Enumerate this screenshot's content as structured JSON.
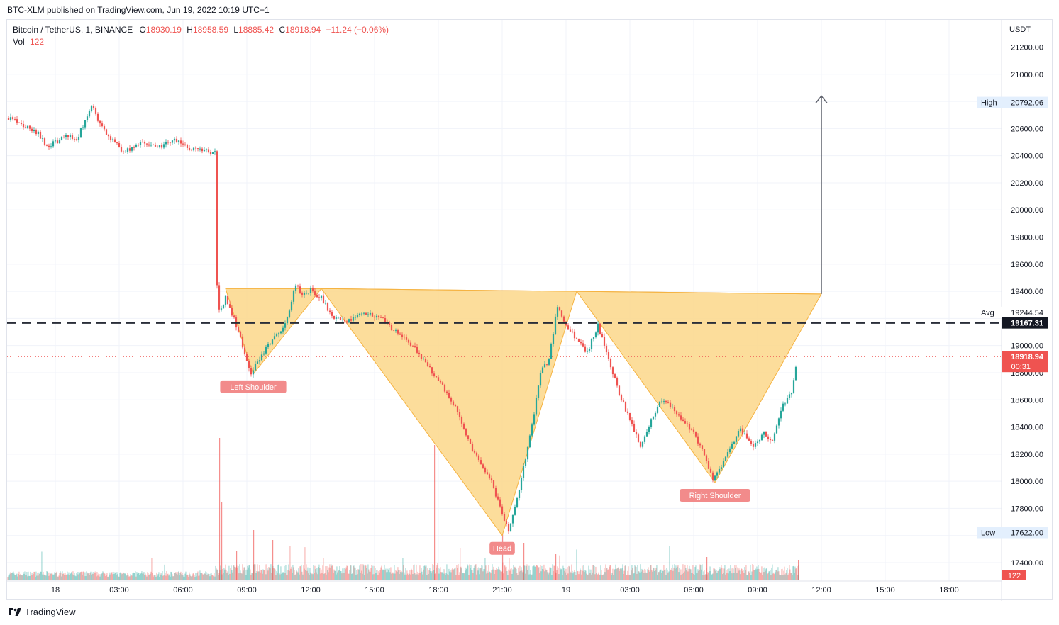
{
  "publisher_line": "BTC-XLM published on TradingView.com, Jun 19, 2022 10:19 UTC+1",
  "legend": {
    "symbol": "Bitcoin / TetherUS, 1, BINANCE",
    "o_label": "O",
    "o": "18930.19",
    "h_label": "H",
    "h": "18958.59",
    "l_label": "L",
    "l": "18885.42",
    "c_label": "C",
    "c": "18918.94",
    "change": "−11.24 (−0.06%)",
    "vol_label": "Vol",
    "vol": "122"
  },
  "footer": {
    "brand": "TradingView"
  },
  "colors": {
    "up": "#26a69a",
    "down": "#ef5350",
    "pattern_fill": "#fbd78a",
    "pattern_line": "#f5b342",
    "label_bg": "#f28b8b"
  },
  "chart_data": {
    "type": "candlestick",
    "currency": "USDT",
    "ylim": [
      17300,
      21350
    ],
    "y_ticks": [
      "21200.00",
      "21000.00",
      "20800.00",
      "20600.00",
      "20400.00",
      "20200.00",
      "20000.00",
      "19800.00",
      "19600.00",
      "19400.00",
      "19200.00",
      "19000.00",
      "18800.00",
      "18600.00",
      "18400.00",
      "18200.00",
      "18000.00",
      "17800.00",
      "17600.00",
      "17400.00"
    ],
    "x_ticks": [
      "18",
      "03:00",
      "06:00",
      "09:00",
      "12:00",
      "15:00",
      "18:00",
      "21:00",
      "19",
      "03:00",
      "06:00",
      "09:00",
      "12:00",
      "15:00",
      "18:00"
    ],
    "x_ticks_hours": [
      0,
      3,
      6,
      9,
      12,
      15,
      18,
      21,
      24,
      27,
      30,
      33,
      36,
      39,
      42
    ],
    "price_path": [
      [
        -2.2,
        20680
      ],
      [
        -1.5,
        20620
      ],
      [
        -0.8,
        20560
      ],
      [
        -0.4,
        20470
      ],
      [
        0.5,
        20540
      ],
      [
        1.0,
        20520
      ],
      [
        1.5,
        20690
      ],
      [
        1.7,
        20780
      ],
      [
        2.2,
        20600
      ],
      [
        2.7,
        20510
      ],
      [
        3.2,
        20430
      ],
      [
        4,
        20490
      ],
      [
        5,
        20470
      ],
      [
        5.5,
        20520
      ],
      [
        6.2,
        20460
      ],
      [
        7.0,
        20440
      ],
      [
        7.5,
        20420
      ],
      [
        7.55,
        19560
      ],
      [
        7.7,
        19250
      ],
      [
        8.0,
        19350
      ],
      [
        8.4,
        19200
      ],
      [
        8.8,
        19000
      ],
      [
        9.2,
        18800
      ],
      [
        9.6,
        18900
      ],
      [
        10.2,
        19050
      ],
      [
        10.8,
        19150
      ],
      [
        11.3,
        19450
      ],
      [
        11.6,
        19380
      ],
      [
        12.0,
        19410
      ],
      [
        12.5,
        19350
      ],
      [
        13.0,
        19220
      ],
      [
        13.7,
        19180
      ],
      [
        14.5,
        19250
      ],
      [
        15.3,
        19200
      ],
      [
        16.0,
        19100
      ],
      [
        16.8,
        19000
      ],
      [
        17.5,
        18850
      ],
      [
        18.2,
        18700
      ],
      [
        18.8,
        18550
      ],
      [
        19.4,
        18300
      ],
      [
        19.9,
        18150
      ],
      [
        20.5,
        18000
      ],
      [
        21.0,
        17750
      ],
      [
        21.3,
        17630
      ],
      [
        21.6,
        17800
      ],
      [
        22.0,
        18100
      ],
      [
        22.4,
        18400
      ],
      [
        22.8,
        18800
      ],
      [
        23.2,
        18900
      ],
      [
        23.6,
        19300
      ],
      [
        24.0,
        19150
      ],
      [
        24.5,
        19050
      ],
      [
        25.0,
        18950
      ],
      [
        25.5,
        19150
      ],
      [
        26.0,
        18900
      ],
      [
        26.5,
        18650
      ],
      [
        27.0,
        18450
      ],
      [
        27.5,
        18250
      ],
      [
        28.0,
        18450
      ],
      [
        28.5,
        18600
      ],
      [
        29.0,
        18550
      ],
      [
        29.5,
        18450
      ],
      [
        30.0,
        18350
      ],
      [
        30.5,
        18200
      ],
      [
        30.9,
        18000
      ],
      [
        31.3,
        18100
      ],
      [
        31.7,
        18250
      ],
      [
        32.2,
        18380
      ],
      [
        32.8,
        18250
      ],
      [
        33.3,
        18350
      ],
      [
        33.7,
        18300
      ],
      [
        34.2,
        18560
      ],
      [
        34.6,
        18650
      ],
      [
        34.9,
        18918.94
      ]
    ],
    "pattern": {
      "neckline": [
        [
          8.0,
          19420
        ],
        [
          12.5,
          19420
        ],
        [
          24.5,
          19400
        ],
        [
          36.0,
          19380
        ]
      ],
      "left_shoulder": [
        [
          8.0,
          19420
        ],
        [
          9.3,
          18790
        ],
        [
          12.5,
          19420
        ]
      ],
      "head": [
        [
          12.5,
          19420
        ],
        [
          21.0,
          17600
        ],
        [
          24.5,
          19400
        ]
      ],
      "right_shoulder": [
        [
          24.5,
          19400
        ],
        [
          31.0,
          17990
        ],
        [
          36.0,
          19380
        ]
      ],
      "target_arrow": [
        [
          36.0,
          19380
        ],
        [
          36.0,
          20840
        ]
      ]
    },
    "labels": [
      {
        "text": "Left Shoulder",
        "x": 9.3,
        "y": 18790
      },
      {
        "text": "Head",
        "x": 21.0,
        "y": 17600
      },
      {
        "text": "Right Shoulder",
        "x": 31.0,
        "y": 17990
      }
    ],
    "reference_lines": {
      "dashed_level": 19167.31,
      "last_price": 18918.94,
      "countdown": "00:31",
      "high": {
        "label": "High",
        "value": "20792.06"
      },
      "avg": {
        "label": "Avg",
        "value": "19244.54"
      },
      "low": {
        "label": "Low",
        "value": "17622.00"
      }
    },
    "volume": {
      "last": "122",
      "spikes": [
        [
          7.7,
          1.0
        ],
        [
          7.8,
          0.55
        ],
        [
          8.5,
          0.2
        ],
        [
          9.3,
          0.35
        ],
        [
          10.2,
          0.28
        ],
        [
          17.8,
          0.95
        ],
        [
          19.0,
          0.22
        ],
        [
          21.0,
          0.32
        ],
        [
          22.0,
          0.26
        ],
        [
          23.5,
          0.18
        ],
        [
          30.6,
          0.16
        ],
        [
          34.9,
          0.14
        ]
      ]
    }
  }
}
